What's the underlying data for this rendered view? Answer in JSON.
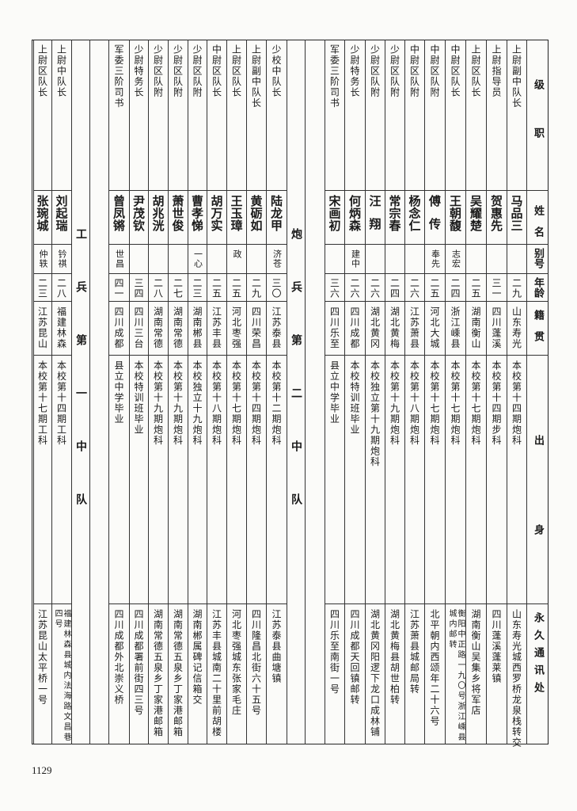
{
  "header": {
    "rank": "级职",
    "name": "姓名",
    "alias": "别号",
    "age": "年龄",
    "native": "籍贯",
    "background": "出身",
    "address": "永久通讯处"
  },
  "sections": [
    {
      "label": "",
      "rows": [
        {
          "rank": "上尉副中队长",
          "name": "马品三",
          "alias": "",
          "age": "二九",
          "native": "山东寿光",
          "background": "本校第十四期炮科",
          "address": "山东寿光城西罗桥龙泉栈转交"
        },
        {
          "rank": "上尉指导员",
          "name": "贺惠先",
          "alias": "",
          "age": "三一",
          "native": "四川蓬溪",
          "background": "本校第十四期步科",
          "address": "四川蓬溪蓬莱镇"
        },
        {
          "rank": "上尉区队长",
          "name": "吴耀楚",
          "alias": "",
          "age": "二五",
          "native": "湖南衡山",
          "background": "本校第十七期炮科",
          "address": "湖南衡山吴集乡将军店"
        },
        {
          "rank": "中尉区队长",
          "name": "王朝馥",
          "alias": "志宏",
          "age": "二四",
          "native": "浙江嵊县",
          "background": "本校第十七期炮科",
          "address": "衡阳中正路一九〇号浙江嵊县城内邮转"
        },
        {
          "rank": "中尉区队附",
          "name": "傅传",
          "alias": "奉先",
          "age": "二五",
          "native": "河北大城",
          "background": "本校第十七期炮科",
          "address": "北平朝内西颂年二十六号"
        },
        {
          "rank": "中尉区队附",
          "name": "杨念仁",
          "alias": "",
          "age": "二六",
          "native": "江苏萧县",
          "background": "本校第十八期炮科",
          "address": "江苏萧县城邮局转"
        },
        {
          "rank": "少尉区队附",
          "name": "常宗春",
          "alias": "",
          "age": "二四",
          "native": "湖北黄梅",
          "background": "本校第十九期炮科",
          "address": "湖北黄梅县胡世柏转"
        },
        {
          "rank": "少尉区队附",
          "name": "汪翔",
          "alias": "",
          "age": "二六",
          "native": "湖北黄冈",
          "background": "本校独立第十九期炮科",
          "address": "湖北黄冈阳逻下龙口成林铺"
        },
        {
          "rank": "少尉特务长",
          "name": "何炳森",
          "alias": "建中",
          "age": "二六",
          "native": "四川成都",
          "background": "本校特训班毕业",
          "address": "四川成都天回镇邮转"
        },
        {
          "rank": "军委三阶司书",
          "name": "宋画初",
          "alias": "",
          "age": "三六",
          "native": "四川乐至",
          "background": "县立中学毕业",
          "address": "四川乐至南街一号"
        }
      ]
    },
    {
      "label": "炮兵第二中队",
      "rows": [
        {
          "rank": "少校中队长",
          "name": "陆龙甲",
          "alias": "济苍",
          "age": "三〇",
          "native": "江苏泰县",
          "background": "本校第十二期炮科",
          "address": "江苏泰县曲塘镇"
        },
        {
          "rank": "上尉副中队长",
          "name": "黄砺如",
          "alias": "",
          "age": "二九",
          "native": "四川荣昌",
          "background": "本校第十四期炮科",
          "address": "四川隆昌北街六十五号"
        },
        {
          "rank": "上尉区队长",
          "name": "王玉璋",
          "alias": "政",
          "age": "二五",
          "native": "河北枣强",
          "background": "本校第十七期炮科",
          "address": "河北枣强城东张家毛庄"
        },
        {
          "rank": "中尉区队长",
          "name": "胡万实",
          "alias": "",
          "age": "二五",
          "native": "江苏丰县",
          "background": "本校第十八期炮科",
          "address": "江苏丰县城南二十里前胡楼"
        },
        {
          "rank": "少尉区队附",
          "name": "曹孝悌",
          "alias": "一心",
          "age": "二三",
          "native": "湖南郴县",
          "background": "本校独立十九炮科",
          "address": "湖南郴属碑记信箱交"
        },
        {
          "rank": "少尉区队附",
          "name": "萧世俊",
          "alias": "",
          "age": "二七",
          "native": "湖南常德",
          "background": "本校第十九期炮科",
          "address": "湖南常德五泉乡丁家港邮箱"
        },
        {
          "rank": "少尉区队附",
          "name": "胡兆洸",
          "alias": "",
          "age": "二八",
          "native": "湖南常德",
          "background": "本校第十九期炮科",
          "address": "湖南常德五泉乡丁家港邮箱"
        },
        {
          "rank": "少尉特务长",
          "name": "尹茂钦",
          "alias": "",
          "age": "三四",
          "native": "四川三台",
          "background": "本校特训班毕业",
          "address": "四川成都署前街四三号"
        },
        {
          "rank": "军委三阶司书",
          "name": "曾凤锵",
          "alias": "世昌",
          "age": "四一",
          "native": "四川成都",
          "background": "县立中学毕业",
          "address": "四川成都外北崇义桥"
        }
      ]
    },
    {
      "label": "工兵第一中队",
      "rows": [
        {
          "rank": "上尉中队长",
          "name": "刘起瑞",
          "alias": "钤祺",
          "age": "二八",
          "native": "福建林森",
          "background": "本校第十四期工科",
          "address": "福建林森县城内法海路文昌巷四号"
        },
        {
          "rank": "上尉区队长",
          "name": "张琬城",
          "alias": "仲轶",
          "age": "二三",
          "native": "江苏昆山",
          "background": "本校第十七期工科",
          "address": "江苏昆山太平桥一号"
        }
      ]
    }
  ],
  "page_number": "1129"
}
